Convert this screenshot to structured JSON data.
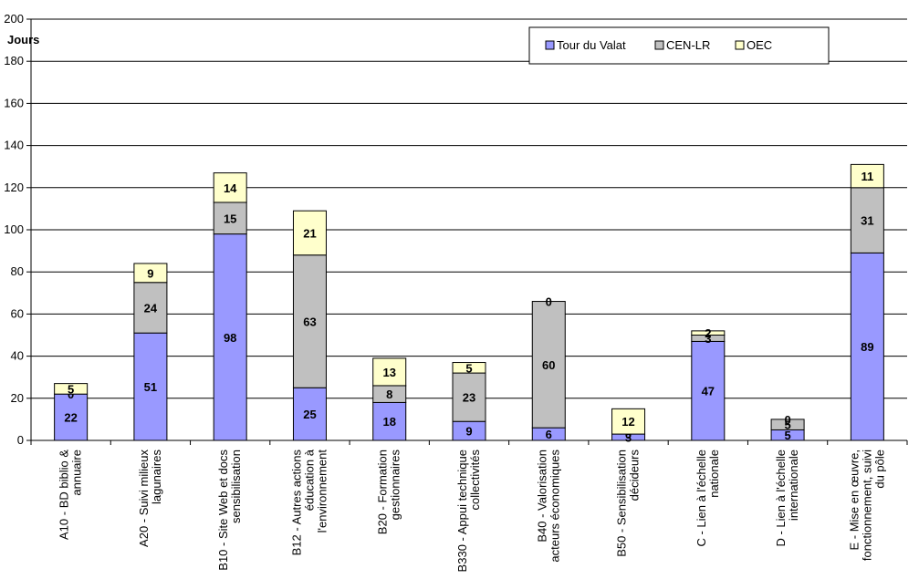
{
  "chart_data": {
    "type": "bar",
    "stacked": true,
    "ylabel": "Jours",
    "ylim": [
      0,
      200
    ],
    "yticks": [
      0,
      20,
      40,
      60,
      80,
      100,
      120,
      140,
      160,
      180,
      200
    ],
    "grid": "horizontal",
    "legend_position": "top-right",
    "categories": [
      [
        "A10 - BD biblio &",
        "annuaire"
      ],
      [
        "A20 - Suivi  milieux",
        "lagunaires"
      ],
      [
        "B10 - Site Web et docs",
        "sensibilisation"
      ],
      [
        "B12 - Autres actions",
        "éducation à",
        "l'environnement"
      ],
      [
        "B20 - Formation",
        "gestionnaires"
      ],
      [
        "B330 - Appui technique",
        "collectivités"
      ],
      [
        "B40 - Valorisation",
        "acteurs économiques"
      ],
      [
        "B50 - Sensibilisation",
        "décideurs"
      ],
      [
        "C - Lien à l'échelle",
        "nationale"
      ],
      [
        "D - Lien à l'échelle",
        "internationale"
      ],
      [
        "E - Mise en œuvre,",
        "fonctionnement, suivi",
        "du pôle"
      ]
    ],
    "series": [
      {
        "name": "Tour du Valat",
        "color": "#9999ff",
        "values": [
          22,
          51,
          98,
          25,
          18,
          9,
          6,
          3,
          47,
          5,
          89
        ]
      },
      {
        "name": "CEN-LR",
        "color": "#c0c0c0",
        "values": [
          0,
          24,
          15,
          63,
          8,
          23,
          60,
          0,
          3,
          5,
          31
        ]
      },
      {
        "name": "OEC",
        "color": "#ffffcc",
        "values": [
          5,
          9,
          14,
          21,
          13,
          5,
          0,
          12,
          2,
          0,
          11
        ]
      }
    ]
  }
}
